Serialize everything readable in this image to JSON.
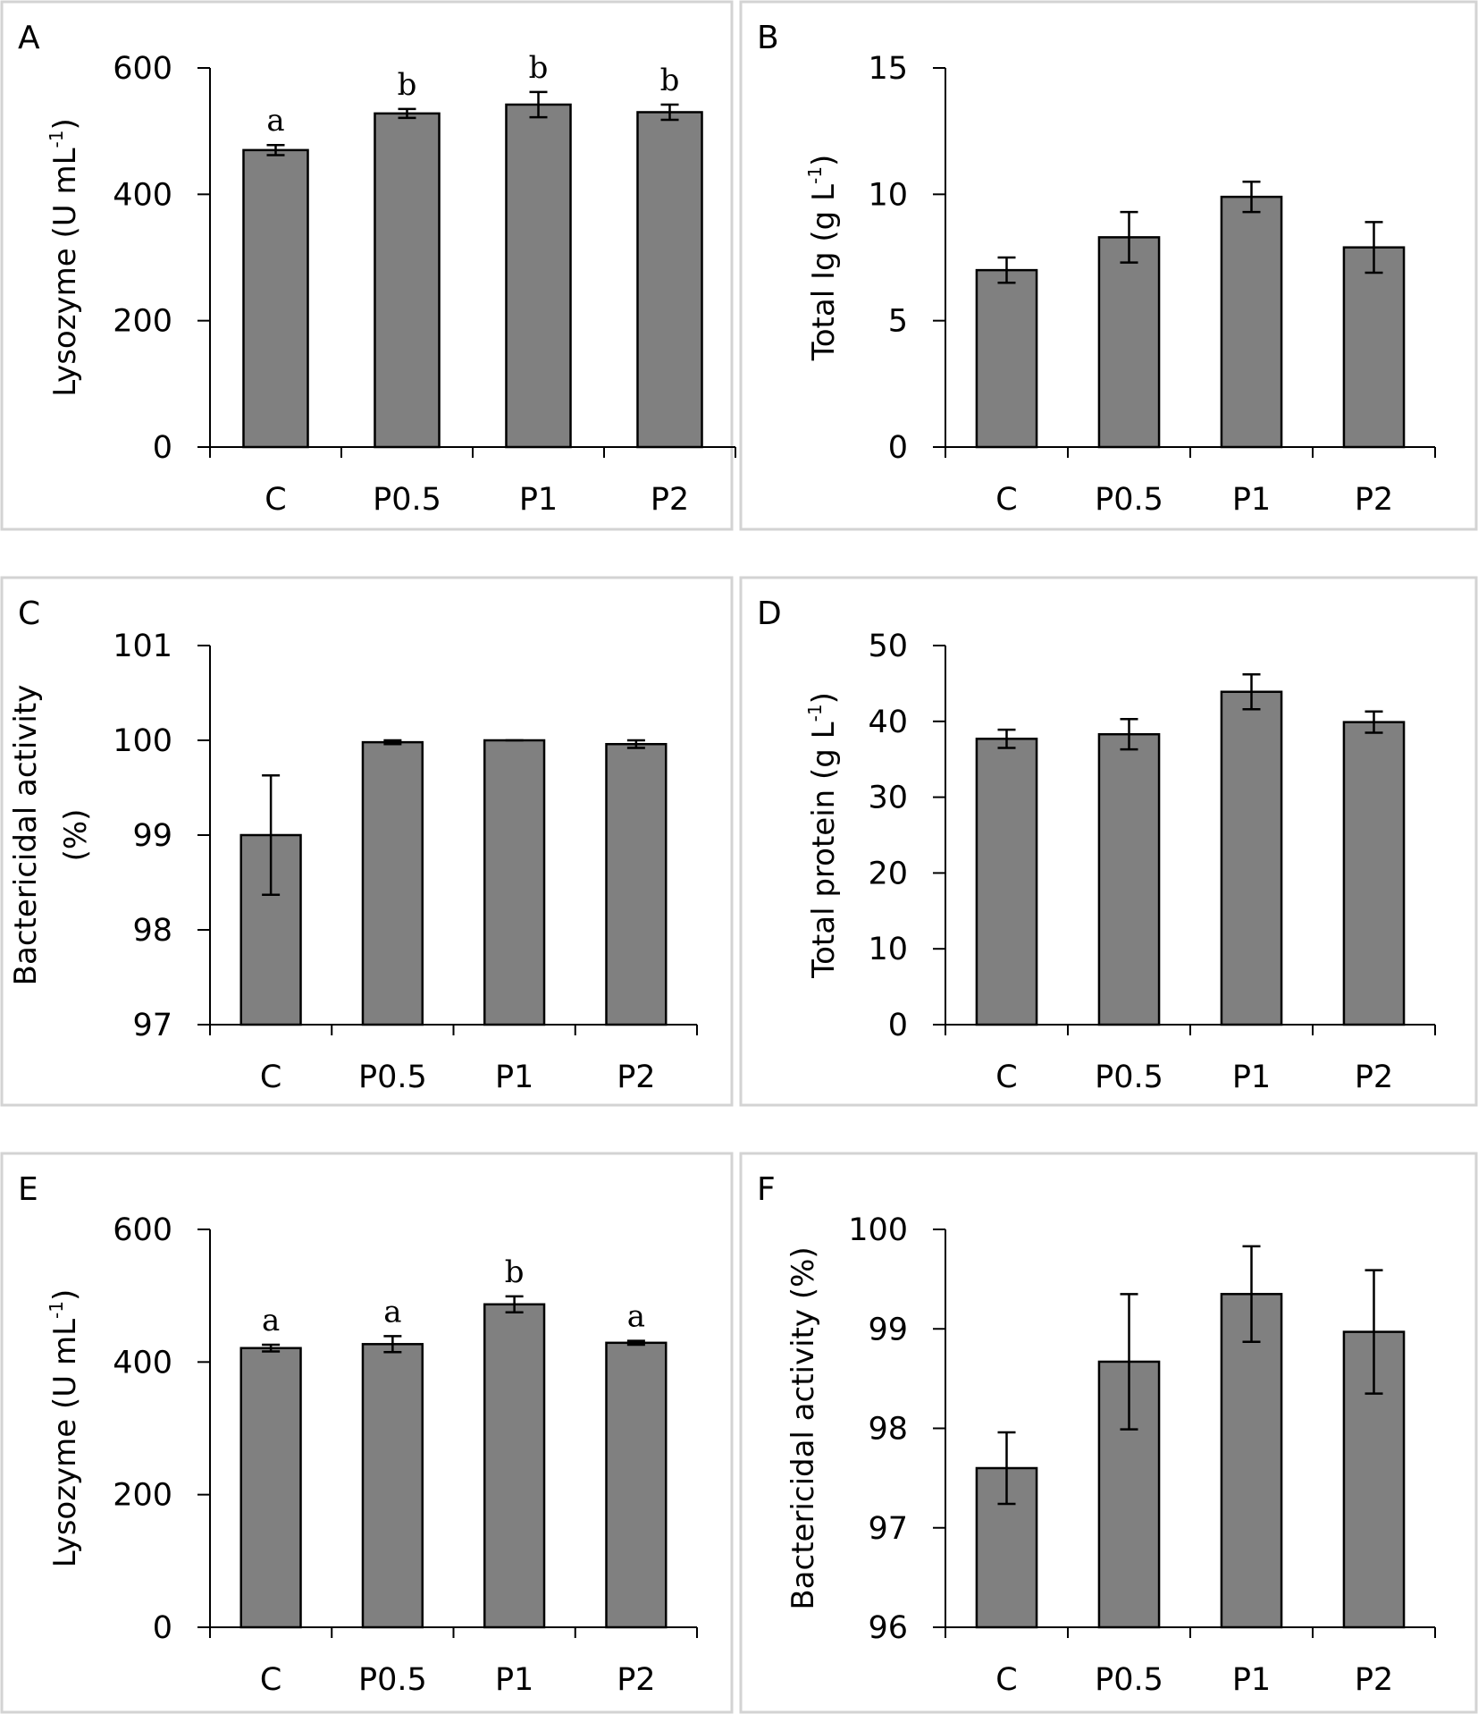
{
  "colors": {
    "bar": "#808080",
    "frame": "#d3d3d3",
    "axis": "#000000"
  },
  "chart_data": [
    {
      "panel": "A",
      "type": "bar",
      "categories": [
        "C",
        "P0.5",
        "P1",
        "P2"
      ],
      "values": [
        470,
        528,
        542,
        530
      ],
      "errors": [
        8,
        7,
        20,
        12
      ],
      "significance": [
        "a",
        "b",
        "b",
        "b"
      ],
      "ylabel": "Lysozyme (U mL",
      "ylabel_sup": "-1",
      "ylabel_end": ")",
      "ylim": [
        0,
        600
      ],
      "yticks": [
        "0",
        "200",
        "400",
        "600"
      ]
    },
    {
      "panel": "B",
      "type": "bar",
      "categories": [
        "C",
        "P0.5",
        "P1",
        "P2"
      ],
      "values": [
        7.0,
        8.3,
        9.9,
        7.9
      ],
      "errors": [
        0.5,
        1.0,
        0.6,
        1.0
      ],
      "significance": [],
      "ylabel": "Total Ig (g L",
      "ylabel_sup": "-1",
      "ylabel_end": ")",
      "ylim": [
        0,
        15
      ],
      "yticks": [
        "0",
        "5",
        "10",
        "15"
      ]
    },
    {
      "panel": "C",
      "type": "bar",
      "categories": [
        "C",
        "P0.5",
        "P1",
        "P2"
      ],
      "values": [
        99.0,
        99.98,
        100.0,
        99.96
      ],
      "errors": [
        0.63,
        0.02,
        0,
        0.04
      ],
      "significance": [],
      "ylabel": "Bactericidal activity",
      "ylabel2": "(%)",
      "ylim": [
        97,
        101
      ],
      "yticks": [
        "97",
        "98",
        "99",
        "100",
        "101"
      ]
    },
    {
      "panel": "D",
      "type": "bar",
      "categories": [
        "C",
        "P0.5",
        "P1",
        "P2"
      ],
      "values": [
        37.7,
        38.3,
        43.9,
        39.9
      ],
      "errors": [
        1.2,
        2.0,
        2.3,
        1.4
      ],
      "significance": [],
      "ylabel": "Total protein (g L",
      "ylabel_sup": "-1",
      "ylabel_end": ")",
      "ylim": [
        0,
        50
      ],
      "yticks": [
        "0",
        "10",
        "20",
        "30",
        "40",
        "50"
      ]
    },
    {
      "panel": "E",
      "type": "bar",
      "categories": [
        "C",
        "P0.5",
        "P1",
        "P2"
      ],
      "values": [
        421,
        427,
        487,
        429
      ],
      "errors": [
        5,
        12,
        12,
        3
      ],
      "significance": [
        "a",
        "a",
        "b",
        "a"
      ],
      "ylabel": "Lysozyme (U mL",
      "ylabel_sup": "-1",
      "ylabel_end": ")",
      "ylim": [
        0,
        600
      ],
      "yticks": [
        "0",
        "200",
        "400",
        "600"
      ]
    },
    {
      "panel": "F",
      "type": "bar",
      "categories": [
        "C",
        "P0.5",
        "P1",
        "P2"
      ],
      "values": [
        97.6,
        98.67,
        99.35,
        98.97
      ],
      "errors": [
        0.36,
        0.68,
        0.48,
        0.62
      ],
      "significance": [],
      "ylabel": "Bactericidal activity (%)",
      "ylim": [
        96,
        100
      ],
      "yticks": [
        "96",
        "97",
        "98",
        "99",
        "100"
      ]
    }
  ]
}
